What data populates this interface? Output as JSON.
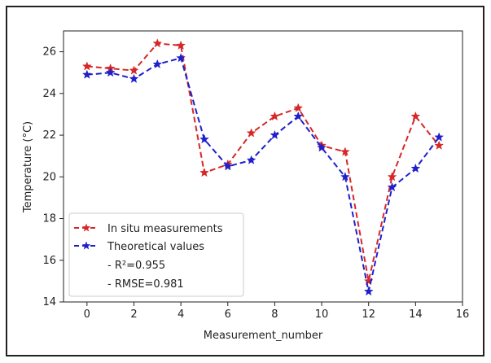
{
  "chart_data": {
    "type": "line",
    "xlabel": "Measurement_number",
    "ylabel": "Temperature (°C)",
    "xlim": [
      -1,
      16
    ],
    "ylim": [
      14,
      27
    ],
    "xticks": [
      0,
      2,
      4,
      6,
      8,
      10,
      12,
      14,
      16
    ],
    "yticks": [
      14,
      16,
      18,
      20,
      22,
      24,
      26
    ],
    "x": [
      0,
      1,
      2,
      3,
      4,
      5,
      6,
      7,
      8,
      9,
      10,
      11,
      12,
      13,
      14,
      15
    ],
    "series": [
      {
        "name": "In situ measurements",
        "color": "#d62728",
        "line_style": "dashed",
        "marker": "star",
        "values": [
          25.3,
          25.2,
          25.1,
          26.4,
          26.3,
          20.2,
          20.6,
          22.1,
          22.9,
          23.3,
          21.5,
          21.2,
          15.0,
          20.0,
          22.9,
          21.5
        ]
      },
      {
        "name": "Theoretical values",
        "color": "#1f1fcc",
        "line_style": "dashed",
        "marker": "star",
        "values": [
          24.9,
          25.0,
          24.7,
          25.4,
          25.7,
          21.8,
          20.5,
          20.8,
          22.0,
          22.9,
          21.4,
          20.0,
          14.5,
          19.5,
          20.4,
          21.9
        ]
      }
    ],
    "legend": {
      "position": "lower-left",
      "extra_lines": [
        "- R²=0.955",
        "- RMSE=0.981"
      ]
    },
    "grid": false
  }
}
